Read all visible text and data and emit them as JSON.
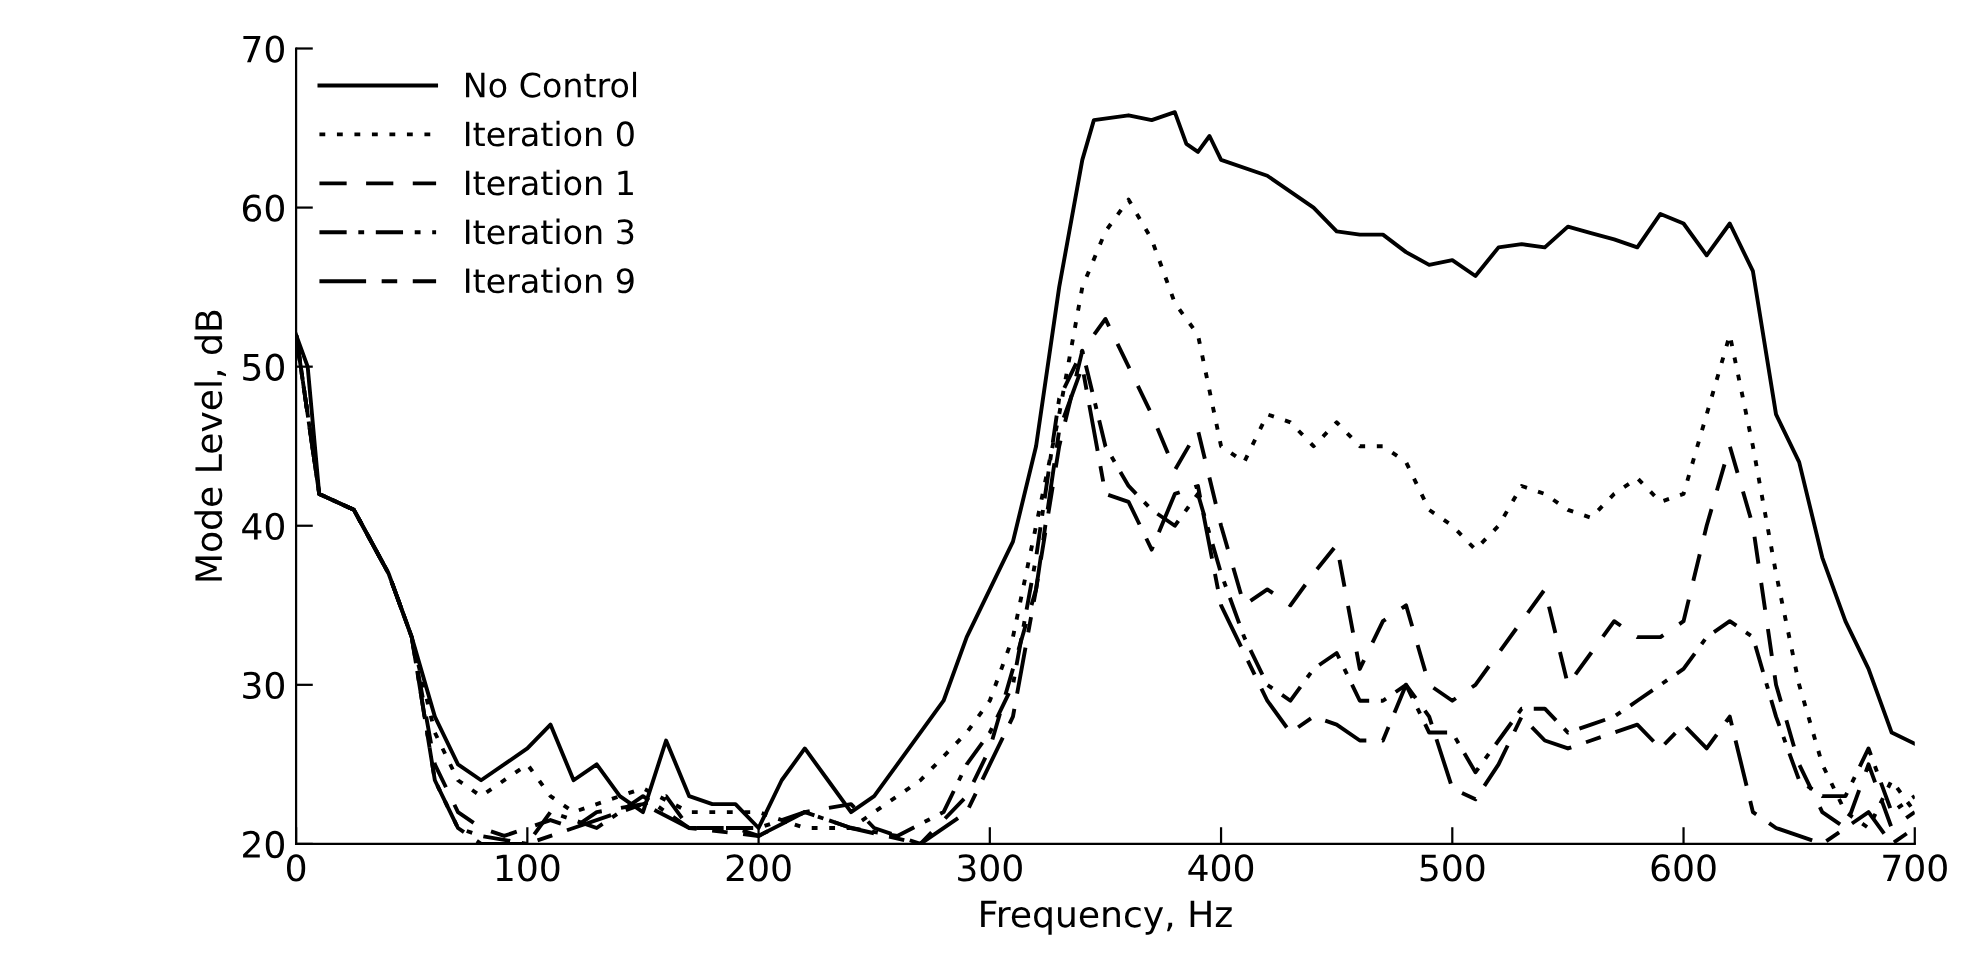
{
  "chart_data": {
    "type": "line",
    "xlabel": "Frequency, Hz",
    "ylabel": "Mode Level, dB",
    "xlim": [
      0,
      700
    ],
    "ylim": [
      20,
      70
    ],
    "xticks": [
      0,
      100,
      200,
      300,
      400,
      500,
      600,
      700
    ],
    "yticks": [
      20,
      30,
      40,
      50,
      60,
      70
    ],
    "grid": false,
    "legend": "top left",
    "marker": "none",
    "series": [
      {
        "name": "No Control",
        "color": "#000000",
        "line_style": "solid",
        "x": [
          0,
          5,
          10,
          25,
          40,
          50,
          60,
          70,
          80,
          100,
          110,
          120,
          130,
          140,
          150,
          160,
          170,
          180,
          190,
          200,
          210,
          220,
          230,
          240,
          250,
          260,
          280,
          290,
          300,
          310,
          320,
          330,
          340,
          345,
          360,
          370,
          380,
          385,
          390,
          395,
          400,
          420,
          440,
          450,
          460,
          470,
          480,
          490,
          500,
          510,
          520,
          530,
          540,
          550,
          560,
          570,
          580,
          590,
          600,
          610,
          620,
          630,
          640,
          650,
          660,
          670,
          680,
          690,
          700
        ],
        "values": [
          52,
          50,
          42,
          41,
          37,
          33,
          28,
          25,
          24,
          26,
          27.5,
          24,
          25,
          23,
          22,
          26.5,
          23,
          22.5,
          22.5,
          21,
          24,
          26,
          24,
          22,
          23,
          25,
          29,
          33,
          36,
          39,
          45,
          55,
          63,
          65.5,
          65.8,
          65.5,
          66,
          64,
          63.5,
          64.5,
          63,
          62,
          60,
          58.5,
          58.3,
          58.3,
          57.2,
          56.4,
          56.7,
          55.7,
          57.5,
          57.7,
          57.5,
          58.8,
          58.4,
          58,
          57.5,
          59.6,
          59,
          57,
          59,
          56,
          47,
          44,
          38,
          34,
          31,
          27,
          26.3
        ]
      },
      {
        "name": "Iteration 0",
        "color": "#000000",
        "line_style": "dotted",
        "x": [
          0,
          10,
          25,
          40,
          50,
          60,
          70,
          80,
          100,
          110,
          120,
          150,
          170,
          200,
          220,
          240,
          250,
          270,
          290,
          300,
          310,
          320,
          330,
          340,
          350,
          360,
          370,
          380,
          390,
          400,
          410,
          420,
          430,
          440,
          450,
          460,
          470,
          480,
          490,
          500,
          510,
          520,
          530,
          540,
          550,
          560,
          570,
          580,
          590,
          600,
          610,
          620,
          630,
          640,
          650,
          660,
          670,
          680,
          690,
          700
        ],
        "values": [
          52,
          42,
          41,
          37,
          33,
          27,
          24,
          23,
          25,
          23,
          22,
          23.5,
          22,
          22,
          21,
          21,
          22,
          24,
          27,
          29,
          33,
          40,
          47,
          55,
          58.5,
          60.5,
          58,
          54,
          52,
          45,
          44,
          47,
          46.5,
          45,
          46.5,
          45,
          45,
          44,
          41,
          40,
          38.5,
          40,
          42.5,
          42,
          41,
          40.5,
          42,
          43,
          41.5,
          42,
          47,
          52,
          45,
          37,
          30,
          25,
          22,
          21,
          24,
          22
        ]
      },
      {
        "name": "Iteration 1",
        "color": "#000000",
        "line_style": "dashed",
        "x": [
          0,
          10,
          25,
          40,
          50,
          60,
          70,
          80,
          90,
          100,
          110,
          120,
          130,
          150,
          160,
          170,
          190,
          200,
          220,
          240,
          250,
          270,
          290,
          300,
          310,
          320,
          330,
          340,
          350,
          360,
          370,
          380,
          390,
          400,
          410,
          420,
          430,
          440,
          450,
          460,
          470,
          480,
          490,
          500,
          510,
          520,
          530,
          540,
          550,
          560,
          570,
          580,
          590,
          600,
          610,
          620,
          630,
          640,
          650,
          660,
          670,
          680,
          690,
          700
        ],
        "values": [
          52,
          42,
          41,
          37,
          33,
          25,
          22,
          21,
          20.5,
          21,
          21.5,
          21,
          22,
          22.5,
          23,
          21,
          21,
          20.5,
          22,
          22.5,
          21,
          20,
          23,
          26,
          31,
          36,
          45,
          51,
          53,
          50,
          47,
          43.5,
          46,
          40,
          35,
          36,
          35,
          37,
          38.8,
          31,
          34,
          35,
          30,
          29,
          30,
          32,
          34,
          36,
          30,
          32,
          34,
          33,
          33,
          34,
          40,
          45,
          40,
          30,
          25,
          22,
          21,
          25,
          21,
          22
        ]
      },
      {
        "name": "Iteration 3",
        "color": "#000000",
        "line_style": "dashdot",
        "x": [
          0,
          10,
          25,
          40,
          50,
          60,
          70,
          80,
          100,
          110,
          130,
          150,
          170,
          200,
          220,
          240,
          260,
          280,
          290,
          300,
          310,
          320,
          330,
          340,
          350,
          360,
          370,
          380,
          390,
          400,
          410,
          420,
          430,
          440,
          450,
          460,
          470,
          480,
          490,
          500,
          510,
          520,
          530,
          540,
          550,
          560,
          570,
          580,
          590,
          600,
          610,
          620,
          630,
          640,
          650,
          660,
          670,
          680,
          690,
          700
        ],
        "values": [
          52,
          42,
          41,
          37,
          33,
          24,
          21,
          20.5,
          20,
          22,
          21,
          23,
          21,
          21,
          22,
          21,
          20.5,
          22,
          25,
          27,
          30,
          38,
          48,
          51,
          45,
          42.5,
          41,
          40,
          42,
          37,
          33,
          30,
          29,
          31,
          32,
          29,
          29,
          30,
          27,
          27,
          24.5,
          26.5,
          28.5,
          28.5,
          27,
          27.5,
          28,
          29,
          30,
          31,
          33,
          34,
          33,
          28,
          24,
          23,
          23,
          26,
          22,
          23
        ]
      },
      {
        "name": "Iteration 9",
        "color": "#000000",
        "line_style": "longdash",
        "x": [
          0,
          10,
          25,
          40,
          50,
          60,
          70,
          80,
          100,
          120,
          150,
          170,
          200,
          220,
          240,
          270,
          290,
          300,
          310,
          320,
          330,
          340,
          350,
          360,
          370,
          380,
          390,
          400,
          410,
          420,
          430,
          440,
          450,
          460,
          470,
          480,
          490,
          500,
          510,
          520,
          530,
          540,
          550,
          560,
          570,
          580,
          590,
          600,
          610,
          620,
          630,
          640,
          650,
          660,
          670,
          680,
          690,
          700
        ],
        "values": [
          52,
          42,
          41,
          37,
          33,
          24,
          21,
          20,
          20,
          21,
          22.5,
          21,
          20.5,
          22,
          21,
          20,
          22,
          25,
          28,
          36,
          46,
          50,
          42,
          41.5,
          38.5,
          42,
          42.5,
          35,
          32,
          29,
          27,
          28,
          27.5,
          26.5,
          26.5,
          30,
          28,
          23.5,
          22.8,
          25,
          28,
          26.5,
          26,
          26.5,
          27,
          27.5,
          26,
          27.5,
          26,
          28,
          22,
          21,
          20.5,
          20,
          21,
          22,
          20,
          21
        ]
      }
    ]
  }
}
